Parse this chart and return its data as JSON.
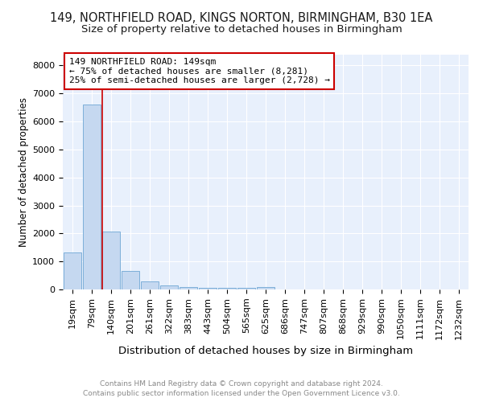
{
  "title": "149, NORTHFIELD ROAD, KINGS NORTON, BIRMINGHAM, B30 1EA",
  "subtitle": "Size of property relative to detached houses in Birmingham",
  "xlabel": "Distribution of detached houses by size in Birmingham",
  "ylabel": "Number of detached properties",
  "categories": [
    "19sqm",
    "79sqm",
    "140sqm",
    "201sqm",
    "261sqm",
    "322sqm",
    "383sqm",
    "443sqm",
    "504sqm",
    "565sqm",
    "625sqm",
    "686sqm",
    "747sqm",
    "807sqm",
    "868sqm",
    "929sqm",
    "990sqm",
    "1050sqm",
    "1111sqm",
    "1172sqm",
    "1232sqm"
  ],
  "values": [
    1320,
    6600,
    2080,
    670,
    295,
    140,
    80,
    60,
    55,
    50,
    80,
    0,
    0,
    0,
    0,
    0,
    0,
    0,
    0,
    0,
    0
  ],
  "bar_color": "#c5d8f0",
  "bar_edge_color": "#7dafd9",
  "property_line_color": "#cc0000",
  "annotation_text": "149 NORTHFIELD ROAD: 149sqm\n← 75% of detached houses are smaller (8,281)\n25% of semi-detached houses are larger (2,728) →",
  "annotation_box_edge": "#cc0000",
  "ylim": [
    0,
    8400
  ],
  "yticks": [
    0,
    1000,
    2000,
    3000,
    4000,
    5000,
    6000,
    7000,
    8000
  ],
  "background_color": "#e8f0fc",
  "grid_color": "#ffffff",
  "footer_line1": "Contains HM Land Registry data © Crown copyright and database right 2024.",
  "footer_line2": "Contains public sector information licensed under the Open Government Licence v3.0.",
  "title_fontsize": 10.5,
  "subtitle_fontsize": 9.5,
  "xlabel_fontsize": 9.5,
  "ylabel_fontsize": 8.5,
  "tick_fontsize": 8,
  "annotation_fontsize": 8,
  "footer_fontsize": 6.5
}
